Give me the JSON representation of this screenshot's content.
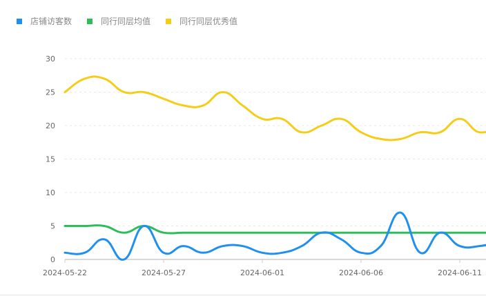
{
  "legend": {
    "items": [
      {
        "label": "店铺访客数",
        "color": "#1f8ff0"
      },
      {
        "label": "同行同层均值",
        "color": "#2dbd5b"
      },
      {
        "label": "同行同层优秀值",
        "color": "#f3cd17"
      }
    ]
  },
  "chart_data": {
    "type": "line",
    "title": "",
    "xlabel": "",
    "ylabel": "",
    "ylim": [
      0,
      30
    ],
    "yticks": [
      0,
      5,
      10,
      15,
      20,
      25,
      30
    ],
    "grid": true,
    "legend_position": "top-left",
    "x": [
      "2024-05-22",
      "2024-05-23",
      "2024-05-24",
      "2024-05-25",
      "2024-05-26",
      "2024-05-27",
      "2024-05-28",
      "2024-05-29",
      "2024-05-30",
      "2024-05-31",
      "2024-06-01",
      "2024-06-02",
      "2024-06-03",
      "2024-06-04",
      "2024-06-05",
      "2024-06-06",
      "2024-06-07",
      "2024-06-08",
      "2024-06-09",
      "2024-06-10",
      "2024-06-11",
      "2024-06-12"
    ],
    "xtick_labels": [
      "2024-05-22",
      "2024-05-27",
      "2024-06-01",
      "2024-06-06",
      "2024-06-11"
    ],
    "series": [
      {
        "name": "店铺访客数",
        "color": "#1f8ff0",
        "values": [
          1,
          1,
          3,
          0,
          5,
          1,
          2,
          1,
          2,
          2,
          1,
          1,
          2,
          4,
          3,
          1,
          2,
          7,
          1,
          4,
          2,
          2
        ]
      },
      {
        "name": "同行同层均值",
        "color": "#2dbd5b",
        "values": [
          5,
          5,
          5,
          4,
          5,
          4,
          4,
          4,
          4,
          4,
          4,
          4,
          4,
          4,
          4,
          4,
          4,
          4,
          4,
          4,
          4,
          4
        ]
      },
      {
        "name": "同行同层优秀值",
        "color": "#f3cd17",
        "values": [
          25,
          27,
          27,
          25,
          25,
          24,
          23,
          23,
          25,
          23,
          21,
          21,
          19,
          20,
          21,
          19,
          18,
          18,
          19,
          19,
          21,
          19
        ]
      }
    ]
  }
}
